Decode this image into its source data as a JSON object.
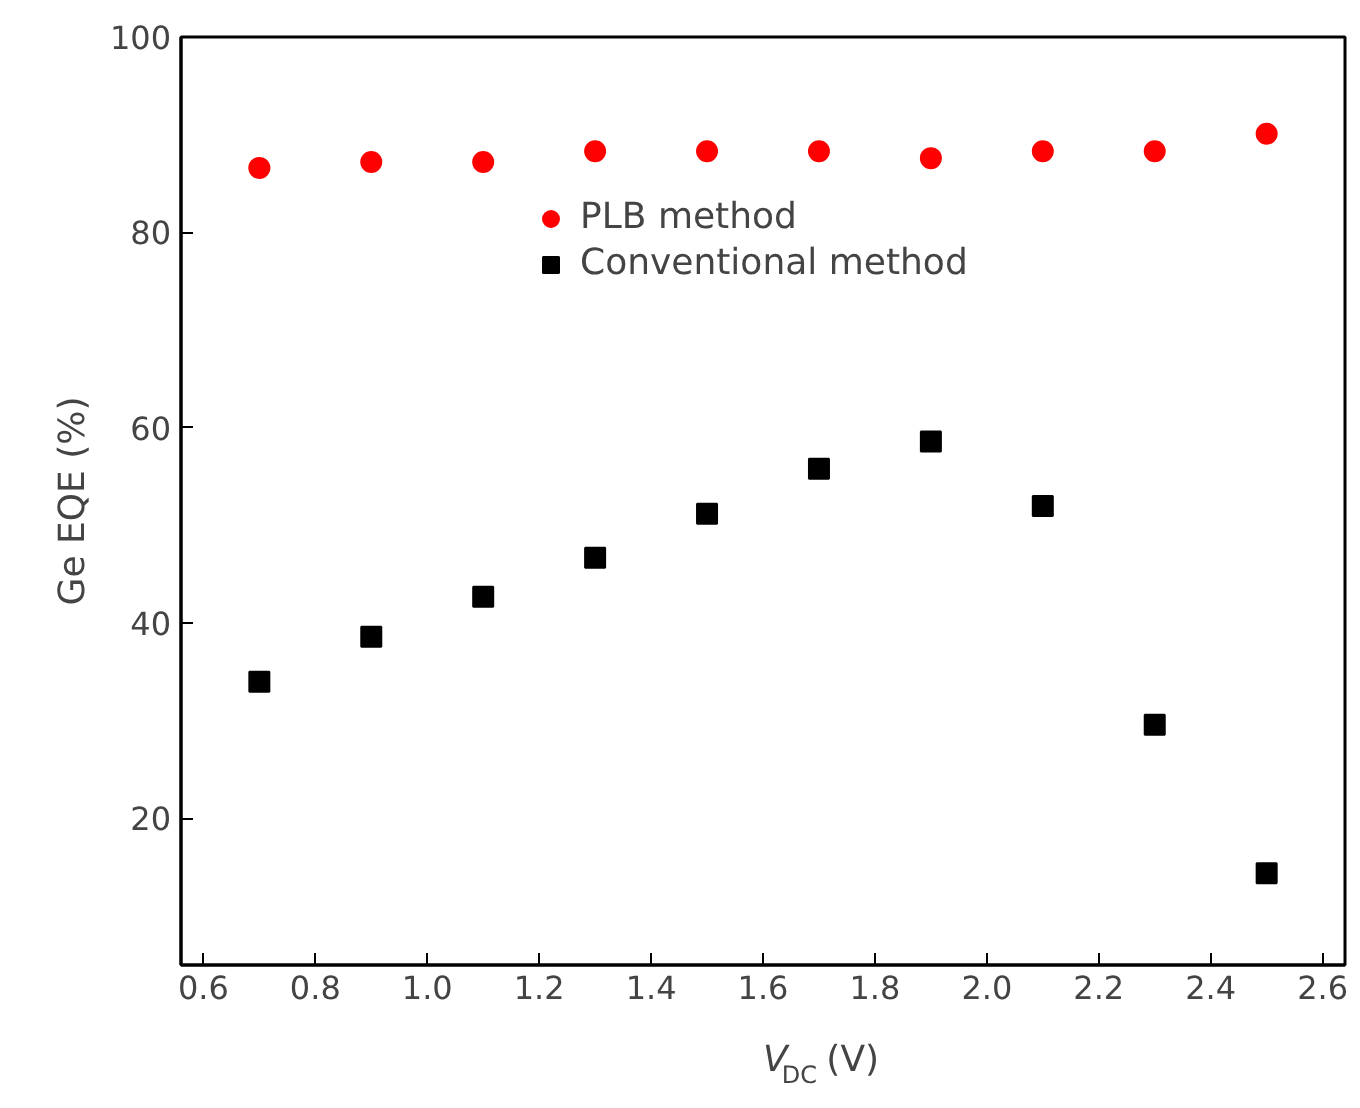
{
  "chart_data": {
    "type": "scatter",
    "xlabel": "V$_{DC}$ (V)",
    "ylabel": "Ge EQE (%)",
    "x": [
      0.7,
      0.9,
      1.1,
      1.3,
      1.5,
      1.7,
      1.9,
      2.1,
      2.3,
      2.5
    ],
    "series": [
      {
        "name": "PLB method",
        "color": "#ff0000",
        "marker": "circle",
        "values": [
          86.6,
          87.2,
          87.2,
          88.3,
          88.3,
          88.3,
          87.6,
          88.3,
          88.3,
          90.1
        ]
      },
      {
        "name": "Conventional method",
        "color": "#000000",
        "marker": "square",
        "values": [
          34.0,
          38.6,
          42.7,
          46.7,
          51.2,
          55.8,
          58.6,
          52.0,
          29.6,
          14.4
        ]
      }
    ],
    "xlim": [
      0.56,
      2.64
    ],
    "ylim": [
      5,
      100
    ],
    "xticks": [
      0.6,
      0.8,
      {
        "value": 1.0,
        "label": "1.0"
      },
      1.2,
      1.4,
      1.6,
      1.8,
      {
        "value": 2.0,
        "label": "2.0"
      },
      2.2,
      2.4,
      2.6
    ],
    "yticks": [
      20,
      40,
      60,
      80,
      100
    ],
    "grid": false,
    "legend": "top"
  }
}
